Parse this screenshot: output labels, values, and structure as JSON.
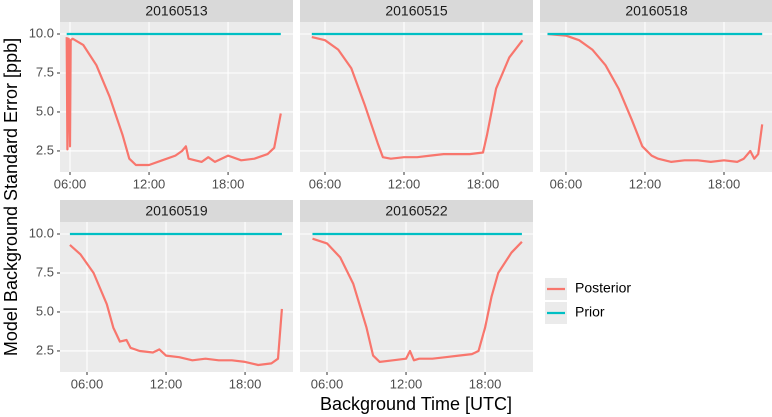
{
  "chart_data": {
    "type": "line",
    "xlabel": "Background Time [UTC]",
    "ylabel": "Model Background Standard Error [ppb]",
    "ylim": [
      1.15,
      10.77
    ],
    "yticks": [
      2.5,
      {
        "value": 5,
        "label": "5.0"
      },
      7.5,
      {
        "value": 10,
        "label": "10.0"
      }
    ],
    "grid": true,
    "series": [
      {
        "name": "Posterior",
        "color": "#F8766D"
      },
      {
        "name": "Prior",
        "color": "#00BFC4"
      }
    ],
    "facets": [
      {
        "title": "20160513",
        "xlim": [
          5.24,
          22.93
        ],
        "xticks": [
          {
            "value": 6,
            "label": "06:00"
          },
          {
            "value": 12,
            "label": "12:00"
          },
          {
            "value": 18,
            "label": "18:00"
          }
        ],
        "series": [
          {
            "x": [
              5.75,
              5.8,
              5.9,
              6.0,
              6.05,
              6.2,
              7,
              8,
              9,
              10,
              10.5,
              11,
              12,
              13,
              14,
              14.5,
              14.8,
              15,
              16,
              16.5,
              17,
              18,
              19,
              20,
              21,
              21.5,
              22
            ],
            "values": [
              9.8,
              2.6,
              9.7,
              2.8,
              9.6,
              9.7,
              9.3,
              8,
              6,
              3.5,
              2.0,
              1.6,
              1.6,
              1.9,
              2.2,
              2.5,
              2.8,
              2.0,
              1.8,
              2.1,
              1.8,
              2.2,
              1.9,
              2.0,
              2.3,
              2.7,
              4.9
            ]
          },
          {
            "x": [
              5.75,
              22
            ],
            "values": [
              10,
              10
            ]
          }
        ]
      },
      {
        "title": "20160515",
        "xlim": [
          4.1,
          21.8
        ],
        "xticks": [
          {
            "value": 6,
            "label": "06:00"
          },
          {
            "value": 12,
            "label": "12:00"
          },
          {
            "value": 18,
            "label": "18:00"
          }
        ],
        "series": [
          {
            "x": [
              5,
              6,
              7,
              8,
              9,
              10,
              10.4,
              11,
              12,
              13,
              14,
              15,
              16,
              17,
              18,
              18.3,
              19,
              20,
              21
            ],
            "values": [
              9.8,
              9.6,
              9.0,
              7.8,
              5.5,
              3.0,
              2.1,
              2.0,
              2.1,
              2.1,
              2.2,
              2.3,
              2.3,
              2.3,
              2.4,
              3.5,
              6.5,
              8.5,
              9.6
            ]
          },
          {
            "x": [
              5,
              21
            ],
            "values": [
              10,
              10
            ]
          }
        ]
      },
      {
        "title": "20160518",
        "xlim": [
          4.03,
          21.72
        ],
        "xticks": [
          {
            "value": 6,
            "label": "06:00"
          },
          {
            "value": 12,
            "label": "12:00"
          },
          {
            "value": 18,
            "label": "18:00"
          }
        ],
        "series": [
          {
            "x": [
              4.6,
              6,
              7,
              8,
              9,
              10,
              11,
              11.8,
              12.5,
              13,
              14,
              15,
              16,
              17,
              18,
              19,
              19.5,
              20,
              20.3,
              20.6,
              20.9
            ],
            "values": [
              10,
              9.9,
              9.6,
              9.0,
              8.0,
              6.5,
              4.5,
              2.8,
              2.2,
              2.0,
              1.8,
              1.9,
              1.9,
              1.8,
              1.9,
              1.8,
              2.0,
              2.5,
              2.0,
              2.3,
              4.2
            ]
          },
          {
            "x": [
              4.6,
              20.9
            ],
            "values": [
              10,
              10
            ]
          }
        ]
      },
      {
        "title": "20160519",
        "xlim": [
          3.95,
          21.64
        ],
        "xticks": [
          {
            "value": 6,
            "label": "06:00"
          },
          {
            "value": 12,
            "label": "12:00"
          },
          {
            "value": 18,
            "label": "18:00"
          }
        ],
        "series": [
          {
            "x": [
              4.7,
              5.5,
              6.5,
              7.5,
              8,
              8.5,
              9,
              9.3,
              10,
              11,
              11.5,
              12,
              13,
              14,
              15,
              16,
              17,
              18,
              19,
              20,
              20.5,
              20.8
            ],
            "values": [
              9.3,
              8.7,
              7.5,
              5.5,
              4.0,
              3.1,
              3.2,
              2.7,
              2.5,
              2.4,
              2.6,
              2.2,
              2.1,
              1.9,
              2.0,
              1.9,
              1.9,
              1.8,
              1.6,
              1.7,
              2.0,
              5.2
            ]
          },
          {
            "x": [
              4.7,
              20.8
            ],
            "values": [
              10,
              10
            ]
          }
        ]
      },
      {
        "title": "20160522",
        "xlim": [
          3.95,
          21.64
        ],
        "xticks": [
          {
            "value": 6,
            "label": "06:00"
          },
          {
            "value": 12,
            "label": "12:00"
          },
          {
            "value": 18,
            "label": "18:00"
          }
        ],
        "series": [
          {
            "x": [
              4.9,
              6,
              7,
              8,
              9,
              9.5,
              10,
              11,
              12,
              12.3,
              12.6,
              13,
              14,
              15,
              16,
              17,
              17.5,
              18,
              18.5,
              19,
              20,
              20.8
            ],
            "values": [
              9.7,
              9.4,
              8.5,
              6.8,
              4.0,
              2.2,
              1.8,
              1.9,
              2.0,
              2.5,
              1.9,
              2.0,
              2.0,
              2.1,
              2.2,
              2.3,
              2.5,
              4.0,
              6.0,
              7.5,
              8.8,
              9.5
            ]
          },
          {
            "x": [
              4.9,
              20.8
            ],
            "values": [
              10,
              10
            ]
          }
        ]
      }
    ]
  }
}
